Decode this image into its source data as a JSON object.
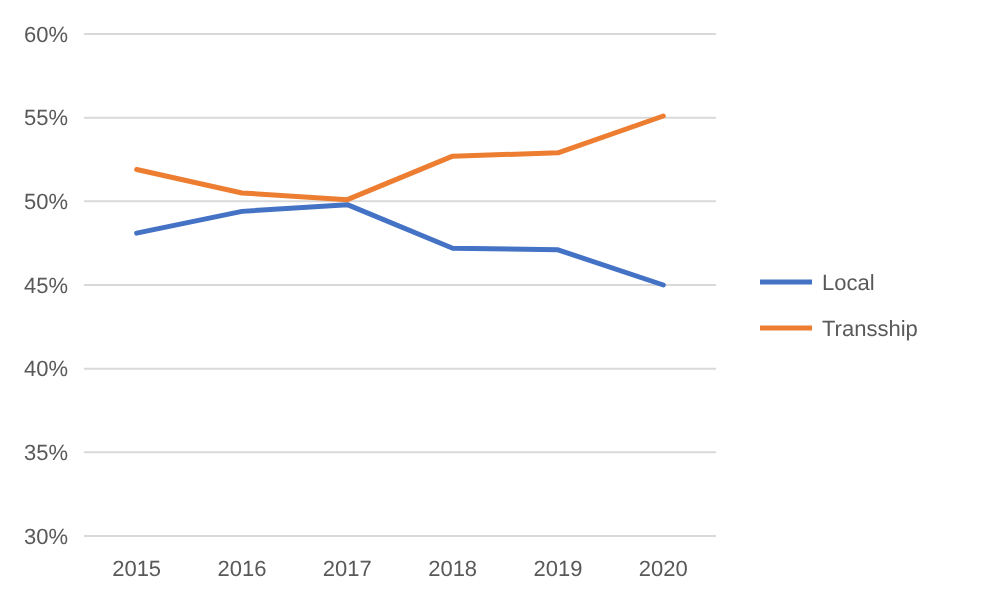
{
  "chart_data": {
    "type": "line",
    "categories": [
      "2015",
      "2016",
      "2017",
      "2018",
      "2019",
      "2020"
    ],
    "series": [
      {
        "name": "Local",
        "color": "#4472c4",
        "values": [
          48.1,
          49.4,
          49.8,
          47.2,
          47.1,
          45.0
        ]
      },
      {
        "name": "Transship",
        "color": "#ed7d31",
        "values": [
          51.9,
          50.5,
          50.1,
          52.7,
          52.9,
          55.1
        ]
      }
    ],
    "ylim": [
      30,
      60
    ],
    "yticks": [
      {
        "value": 30,
        "label": "30%"
      },
      {
        "value": 35,
        "label": "35%"
      },
      {
        "value": 40,
        "label": "40%"
      },
      {
        "value": 45,
        "label": "45%"
      },
      {
        "value": 50,
        "label": "50%"
      },
      {
        "value": 55,
        "label": "55%"
      },
      {
        "value": 60,
        "label": "60%"
      }
    ],
    "grid": "y",
    "legend": "right",
    "marker": "none",
    "line_style": "solid"
  }
}
